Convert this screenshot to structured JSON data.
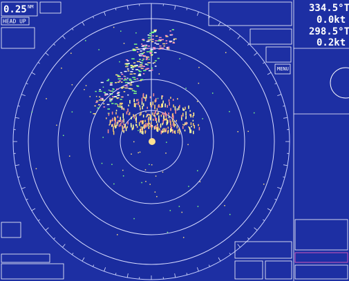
{
  "range": {
    "value": "0.25",
    "unit": "NM"
  },
  "mode": "HEAD UP",
  "heading": {
    "value": "334.5°T",
    "speed": "0.0kt"
  },
  "set_drift": {
    "course": "298.5°T",
    "speed": "0.2kt"
  },
  "menu": "MENU"
}
